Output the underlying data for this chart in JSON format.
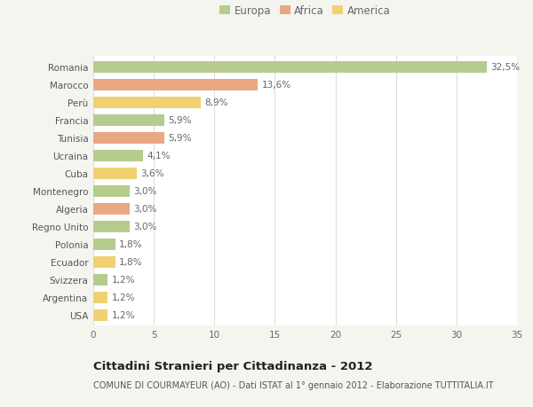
{
  "countries": [
    "Romania",
    "Marocco",
    "Perù",
    "Francia",
    "Tunisia",
    "Ucraina",
    "Cuba",
    "Montenegro",
    "Algeria",
    "Regno Unito",
    "Polonia",
    "Ecuador",
    "Svizzera",
    "Argentina",
    "USA"
  ],
  "values": [
    32.5,
    13.6,
    8.9,
    5.9,
    5.9,
    4.1,
    3.6,
    3.0,
    3.0,
    3.0,
    1.8,
    1.8,
    1.2,
    1.2,
    1.2
  ],
  "labels": [
    "32,5%",
    "13,6%",
    "8,9%",
    "5,9%",
    "5,9%",
    "4,1%",
    "3,6%",
    "3,0%",
    "3,0%",
    "3,0%",
    "1,8%",
    "1,8%",
    "1,2%",
    "1,2%",
    "1,2%"
  ],
  "categories": [
    "Europa",
    "Africa",
    "America"
  ],
  "continent": [
    "Europa",
    "Africa",
    "America",
    "Europa",
    "Africa",
    "Europa",
    "America",
    "Europa",
    "Africa",
    "Europa",
    "Europa",
    "America",
    "Europa",
    "America",
    "America"
  ],
  "colors": {
    "Europa": "#b5cc8e",
    "Africa": "#e8a882",
    "America": "#f0d070"
  },
  "legend_colors": [
    "#b5cc8e",
    "#e8a882",
    "#f0d070"
  ],
  "bg_color": "#f5f5f0",
  "plot_bg_color": "#ffffff",
  "title": "Cittadini Stranieri per Cittadinanza - 2012",
  "subtitle": "COMUNE DI COURMAYEUR (AO) - Dati ISTAT al 1° gennaio 2012 - Elaborazione TUTTITALIA.IT",
  "xlim": [
    0,
    35
  ],
  "xticks": [
    0,
    5,
    10,
    15,
    20,
    25,
    30,
    35
  ],
  "grid_color": "#dddddd",
  "bar_height": 0.65,
  "label_fontsize": 7.5,
  "tick_fontsize": 7.5,
  "ytick_fontsize": 7.5,
  "title_fontsize": 9.5,
  "subtitle_fontsize": 7.0,
  "legend_fontsize": 8.5
}
